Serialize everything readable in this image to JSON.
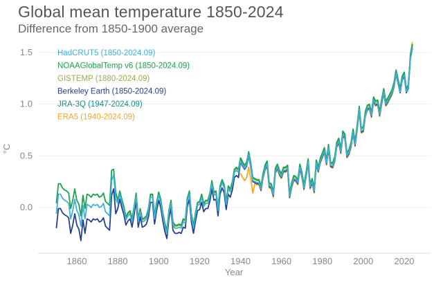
{
  "chart_data": {
    "type": "line",
    "title": "Global mean temperature 1850-2024",
    "subtitle": "Difference from 1850-1900 average",
    "xlabel": "Year",
    "ylabel": "°C",
    "xlim": [
      1843,
      2035
    ],
    "ylim": [
      -0.44,
      1.6
    ],
    "x_ticks": [
      1860,
      1880,
      1900,
      1920,
      1940,
      1960,
      1980,
      2000,
      2020
    ],
    "y_ticks": [
      "0.0",
      "0.5",
      "1.0",
      "1.5"
    ],
    "grid": "horizontal",
    "legend_position": "top-left",
    "series": [
      {
        "name": "ERA5 (1940-2024.09)",
        "color": "#f5a623",
        "start_year": 1940,
        "values": [
          0.33,
          0.29,
          0.26,
          0.29,
          0.39,
          0.28,
          0.14,
          0.23,
          0.22,
          0.22,
          0.16,
          0.28,
          0.36,
          0.4,
          0.19,
          0.18,
          0.1,
          0.33,
          0.37,
          0.31,
          0.28,
          0.34,
          0.34,
          0.36,
          0.09,
          0.19,
          0.26,
          0.25,
          0.22,
          0.37,
          0.29,
          0.17,
          0.29,
          0.42,
          0.18,
          0.23,
          0.14,
          0.41,
          0.34,
          0.43,
          0.48,
          0.53,
          0.41,
          0.56,
          0.39,
          0.38,
          0.44,
          0.58,
          0.62,
          0.52,
          0.69,
          0.66,
          0.48,
          0.51,
          0.58,
          0.71,
          0.59,
          0.75,
          0.93,
          0.72,
          0.73,
          0.88,
          0.94,
          0.95,
          0.87,
          1.02,
          0.98,
          0.99,
          0.88,
          1.0,
          1.1,
          0.98,
          1.01,
          1.05,
          1.09,
          1.16,
          1.3,
          1.21,
          1.12,
          1.24,
          1.3,
          1.12,
          1.16,
          1.48,
          1.6
        ]
      },
      {
        "name": "Berkeley Earth (1850-2024.09)",
        "color": "#263e8e",
        "start_year": 1850,
        "values": [
          -0.2,
          -0.01,
          -0.01,
          -0.05,
          -0.07,
          -0.08,
          -0.1,
          -0.25,
          -0.17,
          -0.06,
          -0.17,
          -0.21,
          -0.32,
          -0.12,
          -0.25,
          -0.11,
          -0.12,
          -0.14,
          -0.11,
          -0.12,
          -0.11,
          -0.14,
          -0.13,
          -0.1,
          -0.18,
          -0.2,
          -0.22,
          0.12,
          0.18,
          -0.06,
          -0.01,
          0.08,
          0.0,
          -0.07,
          -0.17,
          -0.13,
          -0.11,
          -0.19,
          -0.07,
          0.06,
          -0.19,
          -0.09,
          -0.19,
          -0.18,
          -0.16,
          -0.09,
          0.05,
          0.05,
          -0.16,
          -0.03,
          0.07,
          0.0,
          -0.13,
          -0.23,
          -0.3,
          -0.11,
          -0.01,
          -0.22,
          -0.25,
          -0.25,
          -0.24,
          -0.25,
          -0.19,
          -0.2,
          0.01,
          0.08,
          -0.14,
          -0.25,
          -0.13,
          -0.03,
          -0.02,
          0.05,
          -0.04,
          -0.01,
          -0.01,
          0.06,
          0.18,
          0.07,
          0.08,
          -0.08,
          0.13,
          0.19,
          0.14,
          -0.02,
          0.13,
          0.1,
          0.17,
          0.29,
          0.31,
          0.29,
          0.44,
          0.4,
          0.37,
          0.4,
          0.5,
          0.39,
          0.25,
          0.24,
          0.23,
          0.23,
          0.17,
          0.29,
          0.37,
          0.41,
          0.2,
          0.19,
          0.11,
          0.34,
          0.38,
          0.32,
          0.29,
          0.35,
          0.35,
          0.37,
          0.1,
          0.2,
          0.27,
          0.26,
          0.23,
          0.38,
          0.3,
          0.18,
          0.3,
          0.43,
          0.19,
          0.24,
          0.15,
          0.42,
          0.35,
          0.44,
          0.49,
          0.54,
          0.42,
          0.57,
          0.4,
          0.39,
          0.45,
          0.59,
          0.63,
          0.53,
          0.7,
          0.67,
          0.49,
          0.52,
          0.59,
          0.72,
          0.6,
          0.76,
          0.94,
          0.73,
          0.74,
          0.89,
          0.95,
          0.96,
          0.88,
          1.03,
          0.99,
          1.0,
          0.89,
          1.01,
          1.11,
          0.99,
          1.02,
          1.06,
          1.1,
          1.17,
          1.29,
          1.2,
          1.11,
          1.23,
          1.27,
          1.11,
          1.15,
          1.44,
          1.54
        ]
      },
      {
        "name": "GISTEMP (1880-2024.09)",
        "color": "#9aab4d",
        "start_year": 1880,
        "values": [
          0.06,
          0.15,
          0.07,
          0.0,
          -0.1,
          -0.06,
          -0.04,
          -0.12,
          0.0,
          0.13,
          -0.12,
          -0.02,
          -0.12,
          -0.11,
          -0.09,
          -0.02,
          0.12,
          0.12,
          -0.09,
          0.04,
          0.14,
          0.07,
          -0.06,
          -0.16,
          -0.23,
          -0.04,
          0.06,
          -0.15,
          -0.18,
          -0.18,
          -0.17,
          -0.18,
          -0.12,
          -0.13,
          0.08,
          0.15,
          -0.07,
          -0.18,
          -0.06,
          0.04,
          0.05,
          0.12,
          0.03,
          0.06,
          0.06,
          0.13,
          0.25,
          0.14,
          0.15,
          -0.01,
          0.2,
          0.26,
          0.21,
          0.05,
          0.2,
          0.17,
          0.24,
          0.36,
          0.38,
          0.36,
          0.47,
          0.43,
          0.4,
          0.43,
          0.53,
          0.42,
          0.28,
          0.27,
          0.26,
          0.26,
          0.2,
          0.32,
          0.4,
          0.44,
          0.23,
          0.22,
          0.14,
          0.37,
          0.41,
          0.35,
          0.32,
          0.38,
          0.38,
          0.4,
          0.13,
          0.23,
          0.3,
          0.29,
          0.26,
          0.41,
          0.33,
          0.21,
          0.33,
          0.46,
          0.22,
          0.27,
          0.18,
          0.45,
          0.38,
          0.47,
          0.52,
          0.57,
          0.45,
          0.6,
          0.43,
          0.42,
          0.48,
          0.62,
          0.66,
          0.56,
          0.73,
          0.7,
          0.52,
          0.55,
          0.62,
          0.75,
          0.63,
          0.79,
          0.97,
          0.76,
          0.77,
          0.92,
          0.98,
          0.99,
          0.91,
          1.06,
          1.02,
          1.03,
          0.92,
          1.04,
          1.14,
          1.02,
          1.05,
          1.09,
          1.13,
          1.2,
          1.32,
          1.23,
          1.14,
          1.26,
          1.3,
          1.14,
          1.18,
          1.47,
          1.57
        ]
      },
      {
        "name": "NOAAGlobalTemp v6 (1850-2024.09)",
        "color": "#1aa34a",
        "start_year": 1850,
        "values": [
          0.04,
          0.23,
          0.23,
          0.19,
          0.17,
          0.16,
          0.14,
          -0.01,
          0.07,
          0.18,
          0.07,
          0.03,
          -0.08,
          0.12,
          -0.01,
          0.13,
          0.12,
          0.1,
          0.13,
          0.12,
          0.13,
          0.1,
          0.11,
          0.14,
          0.06,
          0.04,
          0.02,
          0.36,
          0.37,
          0.15,
          0.07,
          0.16,
          0.08,
          0.01,
          -0.09,
          -0.05,
          -0.03,
          -0.11,
          0.01,
          0.14,
          -0.11,
          -0.01,
          -0.11,
          -0.1,
          -0.08,
          -0.01,
          0.13,
          0.13,
          -0.08,
          0.05,
          0.15,
          0.08,
          -0.05,
          -0.15,
          -0.22,
          -0.03,
          0.07,
          -0.14,
          -0.17,
          -0.17,
          -0.16,
          -0.17,
          -0.11,
          -0.12,
          0.09,
          0.16,
          -0.06,
          -0.17,
          -0.05,
          0.05,
          0.06,
          0.13,
          0.04,
          0.07,
          0.07,
          0.14,
          0.26,
          0.15,
          0.16,
          0.0,
          0.21,
          0.27,
          0.22,
          0.06,
          0.21,
          0.18,
          0.25,
          0.37,
          0.39,
          0.37,
          0.48,
          0.44,
          0.41,
          0.44,
          0.54,
          0.43,
          0.29,
          0.28,
          0.27,
          0.27,
          0.21,
          0.33,
          0.41,
          0.45,
          0.24,
          0.23,
          0.15,
          0.38,
          0.42,
          0.36,
          0.33,
          0.39,
          0.39,
          0.41,
          0.14,
          0.24,
          0.31,
          0.3,
          0.27,
          0.42,
          0.34,
          0.22,
          0.34,
          0.47,
          0.23,
          0.28,
          0.19,
          0.46,
          0.39,
          0.48,
          0.53,
          0.58,
          0.46,
          0.61,
          0.44,
          0.43,
          0.49,
          0.63,
          0.67,
          0.57,
          0.74,
          0.71,
          0.53,
          0.56,
          0.63,
          0.76,
          0.64,
          0.8,
          0.98,
          0.77,
          0.78,
          0.93,
          0.99,
          1.0,
          0.92,
          1.07,
          1.03,
          1.04,
          0.93,
          1.05,
          1.15,
          1.03,
          1.06,
          1.1,
          1.14,
          1.21,
          1.33,
          1.24,
          1.15,
          1.27,
          1.31,
          1.15,
          1.19,
          1.48,
          1.58
        ]
      },
      {
        "name": "JRA-3Q (1947-2024.09)",
        "color": "#1c8a8a",
        "start_year": 1947,
        "values": [
          0.25,
          0.24,
          0.24,
          0.18,
          0.3,
          0.38,
          0.42,
          0.21,
          0.2,
          0.12,
          0.35,
          0.39,
          0.33,
          0.3,
          0.36,
          0.36,
          0.38,
          0.11,
          0.21,
          0.28,
          0.27,
          0.24,
          0.39,
          0.31,
          0.19,
          0.31,
          0.44,
          0.2,
          0.25,
          0.16,
          0.43,
          0.36,
          0.45,
          0.5,
          0.55,
          0.43,
          0.58,
          0.41,
          0.4,
          0.46,
          0.6,
          0.64,
          0.54,
          0.71,
          0.68,
          0.5,
          0.53,
          0.6,
          0.73,
          0.61,
          0.77,
          0.95,
          0.74,
          0.75,
          0.9,
          0.96,
          0.97,
          0.89,
          1.04,
          1.0,
          1.01,
          0.9,
          1.02,
          1.12,
          1.0,
          1.03,
          1.07,
          1.11,
          1.18,
          1.3,
          1.21,
          1.12,
          1.24,
          1.28,
          1.12,
          1.16,
          1.45,
          1.55
        ]
      },
      {
        "name": "HadCRUT5 (1850-2024.09)",
        "color": "#3db0d8",
        "start_year": 1850,
        "values": [
          -0.06,
          0.13,
          0.13,
          0.09,
          0.07,
          0.06,
          0.04,
          -0.11,
          -0.03,
          0.08,
          -0.03,
          -0.07,
          -0.18,
          0.02,
          -0.11,
          0.03,
          0.02,
          0.0,
          0.03,
          0.02,
          0.03,
          0.0,
          0.01,
          0.04,
          -0.04,
          -0.06,
          -0.08,
          0.26,
          0.32,
          0.08,
          0.04,
          0.13,
          0.05,
          -0.02,
          -0.12,
          -0.08,
          -0.06,
          -0.14,
          -0.02,
          0.11,
          -0.14,
          -0.04,
          -0.14,
          -0.13,
          -0.11,
          -0.04,
          0.1,
          0.1,
          -0.11,
          0.02,
          0.12,
          0.05,
          -0.08,
          -0.18,
          -0.25,
          -0.06,
          0.04,
          -0.17,
          -0.2,
          -0.2,
          -0.19,
          -0.2,
          -0.14,
          -0.15,
          0.06,
          0.13,
          -0.09,
          -0.2,
          -0.08,
          0.02,
          0.03,
          0.1,
          0.01,
          0.04,
          0.04,
          0.11,
          0.23,
          0.12,
          0.13,
          -0.03,
          0.18,
          0.24,
          0.19,
          0.03,
          0.18,
          0.15,
          0.22,
          0.34,
          0.36,
          0.34,
          0.45,
          0.41,
          0.38,
          0.41,
          0.51,
          0.4,
          0.26,
          0.25,
          0.24,
          0.24,
          0.18,
          0.3,
          0.38,
          0.42,
          0.21,
          0.2,
          0.12,
          0.35,
          0.39,
          0.33,
          0.3,
          0.36,
          0.36,
          0.38,
          0.11,
          0.21,
          0.28,
          0.27,
          0.24,
          0.39,
          0.31,
          0.19,
          0.31,
          0.44,
          0.2,
          0.25,
          0.16,
          0.43,
          0.36,
          0.45,
          0.5,
          0.55,
          0.43,
          0.58,
          0.41,
          0.4,
          0.46,
          0.6,
          0.64,
          0.54,
          0.71,
          0.68,
          0.5,
          0.53,
          0.6,
          0.73,
          0.61,
          0.77,
          0.95,
          0.74,
          0.75,
          0.9,
          0.96,
          0.97,
          0.89,
          1.04,
          1.0,
          1.01,
          0.9,
          1.02,
          1.12,
          1.0,
          1.03,
          1.07,
          1.11,
          1.18,
          1.3,
          1.21,
          1.12,
          1.24,
          1.28,
          1.12,
          1.16,
          1.45,
          1.55
        ]
      }
    ],
    "legend_order": [
      5,
      3,
      2,
      1,
      4,
      0
    ]
  }
}
